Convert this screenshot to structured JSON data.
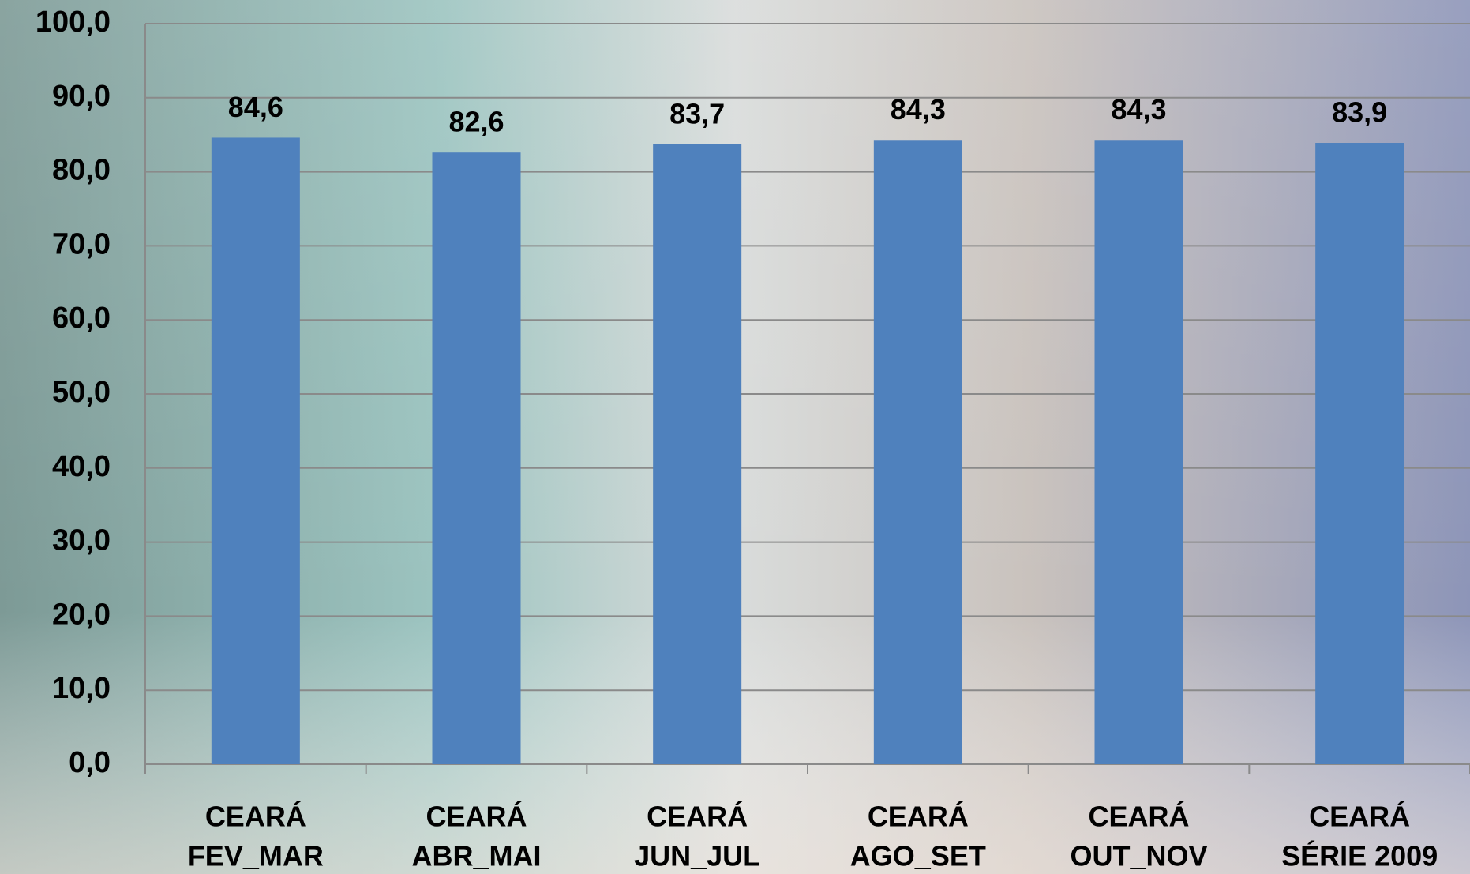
{
  "chart_data": {
    "type": "bar",
    "categories": [
      [
        "CEARÁ",
        "FEV_MAR"
      ],
      [
        "CEARÁ",
        "ABR_MAI"
      ],
      [
        "CEARÁ",
        "JUN_JUL"
      ],
      [
        "CEARÁ",
        "AGO_SET"
      ],
      [
        "CEARÁ",
        "OUT_NOV"
      ],
      [
        "CEARÁ",
        "SÉRIE 2009"
      ]
    ],
    "values": [
      84.6,
      82.6,
      83.7,
      84.3,
      84.3,
      83.9
    ],
    "value_labels": [
      "84,6",
      "82,6",
      "83,7",
      "84,3",
      "84,3",
      "83,9"
    ],
    "color": "#4f81bd",
    "ylim": [
      0,
      100
    ],
    "yticks": [
      {
        "value": 0,
        "label": "0,0"
      },
      {
        "value": 10,
        "label": "10,0"
      },
      {
        "value": 20,
        "label": "20,0"
      },
      {
        "value": 30,
        "label": "30,0"
      },
      {
        "value": 40,
        "label": "40,0"
      },
      {
        "value": 50,
        "label": "50,0"
      },
      {
        "value": 60,
        "label": "60,0"
      },
      {
        "value": 70,
        "label": "70,0"
      },
      {
        "value": 80,
        "label": "80,0"
      },
      {
        "value": 90,
        "label": "90,0"
      },
      {
        "value": 100,
        "label": "100,0"
      }
    ],
    "grid": true
  }
}
